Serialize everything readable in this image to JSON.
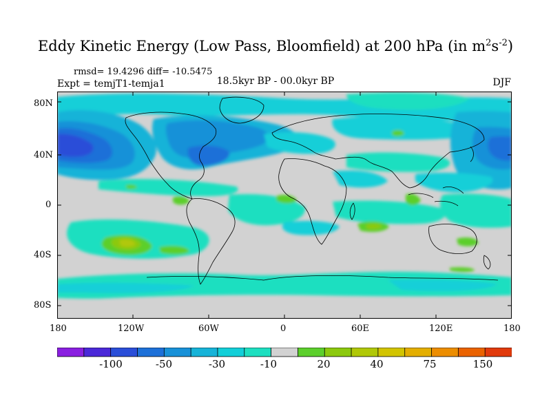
{
  "title": {
    "main": "Eddy Kinetic Energy (Low Pass, Bloomfield) at 200 hPa (in m",
    "sup1": "2",
    "mid": "s",
    "sup2": "-2",
    "end": ")"
  },
  "stats": "rmsd= 19.4296 diff= -10.5475",
  "experiment": "Expt = temjT1-temja1",
  "period": "18.5kyr BP - 00.0kyr BP",
  "season": "DJF",
  "axes": {
    "lat_ticks": [
      "80N",
      "40N",
      "0",
      "40S",
      "80S"
    ],
    "lon_ticks": [
      "180",
      "120W",
      "60W",
      "0",
      "60E",
      "120E",
      "180"
    ]
  },
  "colorbar": {
    "colors": [
      "#8a1fe0",
      "#4a28d8",
      "#2a4ed8",
      "#1d70d8",
      "#1891d8",
      "#16b3d8",
      "#12cfd8",
      "#1ddfc0",
      "#d2d2d2",
      "#5ccf2c",
      "#8cc90e",
      "#b0c807",
      "#d2c400",
      "#e3ae00",
      "#ec8d00",
      "#ea6200",
      "#e13a0c"
    ],
    "labels": [
      "-100",
      "-50",
      "-30",
      "-10",
      "20",
      "40",
      "75",
      "150"
    ]
  },
  "map_colors": {
    "background": "#d2d2d2",
    "land_outline": "#000000"
  }
}
